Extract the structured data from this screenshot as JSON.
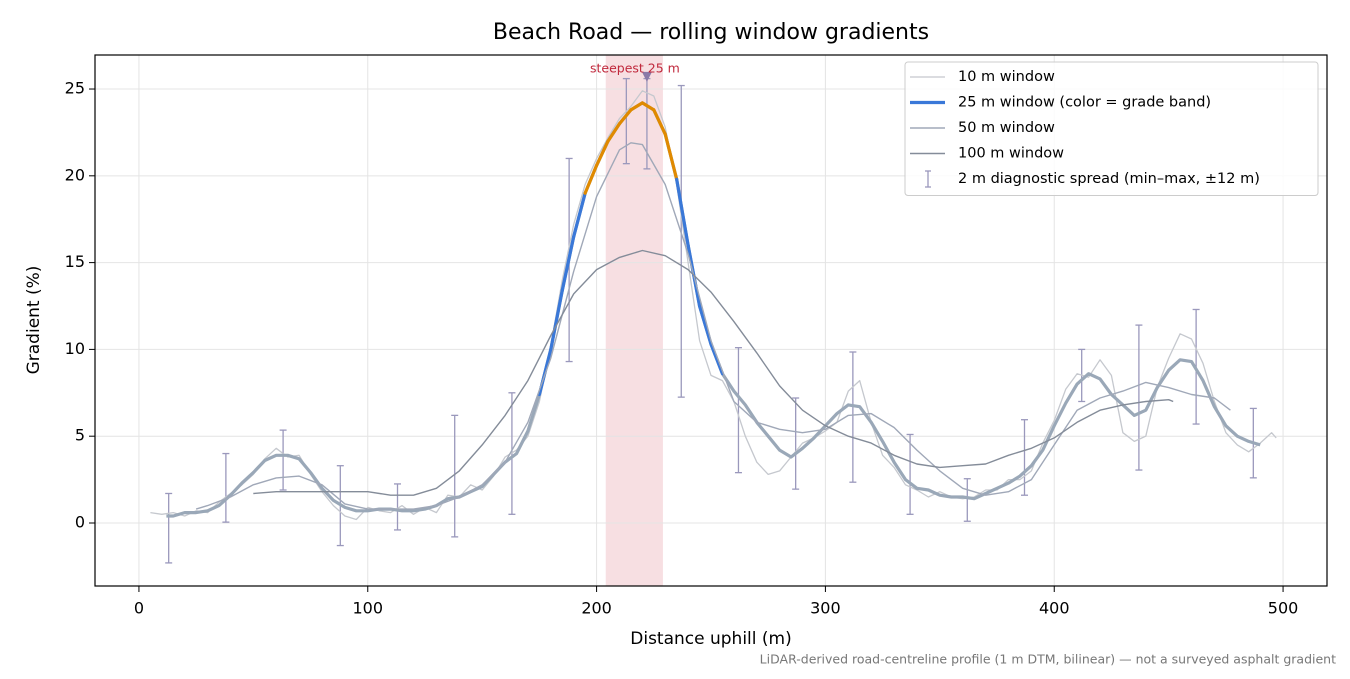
{
  "chart_data": {
    "type": "line",
    "title": "Beach Road — rolling window gradients",
    "x_label": "Distance uphill (m)",
    "y_label": "Gradient (%)",
    "footnote": "LiDAR-derived road-centreline profile (1 m DTM, bilinear) — not a surveyed asphalt gradient",
    "xlim": [
      -19.2,
      519.2
    ],
    "ylim": [
      -3.63,
      26.96
    ],
    "xticks": [
      0,
      100,
      200,
      300,
      400,
      500
    ],
    "yticks": [
      0,
      5,
      10,
      15,
      20,
      25
    ],
    "grid": true,
    "legend": "upper right",
    "highlight": {
      "x": [
        204,
        229
      ],
      "color": "#e8a4ad"
    },
    "annotation": {
      "text": "steepest 25 m",
      "x": 222,
      "y": 25.7,
      "color": "#c0283c"
    },
    "series": [
      {
        "name": "10 m window",
        "color": "#c5c8ce",
        "width": 1.3,
        "x": [
          5,
          10,
          15,
          20,
          25,
          30,
          35,
          40,
          45,
          50,
          55,
          60,
          65,
          70,
          75,
          80,
          85,
          90,
          95,
          100,
          105,
          110,
          115,
          120,
          125,
          130,
          135,
          140,
          145,
          150,
          155,
          160,
          165,
          170,
          175,
          180,
          185,
          190,
          195,
          200,
          205,
          210,
          215,
          220,
          225,
          230,
          235,
          240,
          245,
          250,
          255,
          260,
          265,
          270,
          275,
          280,
          285,
          290,
          295,
          300,
          305,
          310,
          315,
          320,
          325,
          330,
          335,
          340,
          345,
          350,
          355,
          360,
          365,
          370,
          375,
          380,
          385,
          390,
          395,
          400,
          405,
          410,
          415,
          420,
          425,
          430,
          435,
          440,
          445,
          450,
          455,
          460,
          465,
          470,
          475,
          480,
          485,
          490,
          495,
          497
        ],
        "values": [
          0.6,
          0.5,
          0.6,
          0.4,
          0.7,
          0.6,
          1.2,
          1.7,
          2.2,
          2.8,
          3.7,
          4.3,
          3.8,
          3.9,
          2.8,
          1.8,
          1.0,
          0.4,
          0.2,
          0.9,
          0.7,
          0.6,
          1.0,
          0.5,
          0.9,
          0.6,
          1.6,
          1.5,
          2.2,
          1.9,
          2.7,
          3.8,
          4.2,
          5.0,
          7.0,
          10.2,
          14.0,
          17.2,
          19.5,
          21.0,
          22.2,
          23.3,
          24.0,
          24.9,
          24.6,
          22.8,
          19.5,
          15.0,
          10.5,
          8.5,
          8.2,
          7.0,
          5.0,
          3.5,
          2.8,
          3.0,
          3.8,
          4.6,
          4.9,
          5.3,
          5.8,
          7.6,
          8.2,
          5.8,
          3.9,
          3.2,
          2.2,
          1.9,
          1.5,
          1.8,
          1.5,
          1.4,
          1.5,
          1.9,
          1.9,
          2.5,
          2.5,
          3.0,
          4.6,
          5.9,
          7.7,
          8.6,
          8.4,
          9.4,
          8.5,
          5.2,
          4.7,
          5.0,
          7.8,
          9.5,
          10.9,
          10.6,
          9.2,
          7.0,
          5.2,
          4.5,
          4.1,
          4.6,
          5.2,
          4.9
        ]
      },
      {
        "name": "25 m window (color = grade band)",
        "color": "#9aa8b8",
        "legend_color": "#3a78d8",
        "width": 3.2,
        "grade_bands": [
          {
            "min": 10,
            "color": "#3a78d8"
          },
          {
            "min": 20,
            "color": "#e08a00"
          }
        ],
        "x": [
          12,
          15,
          20,
          25,
          30,
          35,
          40,
          45,
          50,
          55,
          60,
          65,
          70,
          75,
          80,
          85,
          90,
          95,
          100,
          105,
          110,
          115,
          120,
          125,
          130,
          135,
          140,
          145,
          150,
          155,
          160,
          165,
          170,
          175,
          180,
          185,
          190,
          195,
          200,
          205,
          210,
          215,
          220,
          225,
          230,
          235,
          240,
          245,
          250,
          255,
          260,
          265,
          270,
          275,
          280,
          285,
          290,
          295,
          300,
          305,
          310,
          315,
          320,
          325,
          330,
          335,
          340,
          345,
          350,
          355,
          360,
          365,
          370,
          375,
          380,
          385,
          390,
          395,
          400,
          405,
          410,
          415,
          420,
          425,
          430,
          435,
          440,
          445,
          450,
          455,
          460,
          465,
          470,
          475,
          480,
          485,
          490
        ],
        "values": [
          0.4,
          0.4,
          0.6,
          0.6,
          0.7,
          1.0,
          1.6,
          2.3,
          2.9,
          3.6,
          3.9,
          3.9,
          3.7,
          2.9,
          2.0,
          1.3,
          0.9,
          0.7,
          0.7,
          0.8,
          0.8,
          0.7,
          0.7,
          0.8,
          1.0,
          1.4,
          1.5,
          1.8,
          2.1,
          2.8,
          3.5,
          4.0,
          5.3,
          7.4,
          10.0,
          13.4,
          16.5,
          19.0,
          20.6,
          22.0,
          23.0,
          23.8,
          24.2,
          23.8,
          22.4,
          19.8,
          16.0,
          12.5,
          10.3,
          8.6,
          7.6,
          6.8,
          5.8,
          5.0,
          4.2,
          3.8,
          4.3,
          4.9,
          5.6,
          6.3,
          6.8,
          6.7,
          5.8,
          4.7,
          3.5,
          2.5,
          2.0,
          1.9,
          1.6,
          1.5,
          1.5,
          1.4,
          1.7,
          2.0,
          2.3,
          2.7,
          3.3,
          4.2,
          5.6,
          6.9,
          8.0,
          8.6,
          8.3,
          7.4,
          6.8,
          6.2,
          6.5,
          7.8,
          8.8,
          9.4,
          9.3,
          8.2,
          6.7,
          5.6,
          5.0,
          4.7,
          4.5
        ]
      },
      {
        "name": "50 m window",
        "color": "#a0a8b8",
        "width": 1.4,
        "x": [
          25,
          30,
          40,
          50,
          60,
          70,
          80,
          90,
          100,
          110,
          120,
          130,
          140,
          150,
          160,
          170,
          180,
          190,
          200,
          210,
          215,
          220,
          230,
          240,
          250,
          260,
          270,
          280,
          290,
          300,
          310,
          320,
          330,
          340,
          350,
          360,
          370,
          380,
          390,
          400,
          410,
          420,
          430,
          440,
          450,
          460,
          470,
          477
        ],
        "values": [
          0.8,
          1.0,
          1.5,
          2.2,
          2.6,
          2.7,
          2.2,
          1.1,
          0.8,
          0.8,
          0.8,
          1.0,
          1.5,
          2.2,
          3.5,
          5.8,
          9.5,
          14.5,
          18.8,
          21.5,
          21.9,
          21.8,
          19.5,
          15.5,
          10.5,
          7.0,
          5.8,
          5.4,
          5.2,
          5.4,
          6.2,
          6.3,
          5.5,
          4.2,
          3.0,
          2.0,
          1.6,
          1.8,
          2.5,
          4.5,
          6.5,
          7.2,
          7.6,
          8.1,
          7.8,
          7.4,
          7.2,
          6.5
        ]
      },
      {
        "name": "100 m window",
        "color": "#848c99",
        "width": 1.4,
        "x": [
          50,
          60,
          70,
          80,
          90,
          100,
          110,
          120,
          130,
          140,
          150,
          160,
          170,
          180,
          190,
          200,
          210,
          220,
          230,
          240,
          250,
          260,
          270,
          280,
          290,
          300,
          310,
          320,
          330,
          340,
          350,
          360,
          370,
          380,
          390,
          400,
          410,
          420,
          430,
          440,
          450,
          452
        ],
        "values": [
          1.7,
          1.8,
          1.8,
          1.8,
          1.8,
          1.8,
          1.6,
          1.6,
          2.0,
          3.0,
          4.5,
          6.2,
          8.2,
          10.8,
          13.2,
          14.6,
          15.3,
          15.7,
          15.4,
          14.6,
          13.3,
          11.6,
          9.8,
          7.9,
          6.5,
          5.6,
          5.0,
          4.6,
          3.9,
          3.4,
          3.2,
          3.3,
          3.4,
          3.9,
          4.3,
          4.9,
          5.8,
          6.5,
          6.8,
          7.0,
          7.1,
          7.0
        ]
      }
    ],
    "spread": {
      "name": "2 m diagnostic spread (min–max, ±12 m)",
      "color": "#9a98bc",
      "x": [
        13,
        38,
        63,
        88,
        113,
        138,
        163,
        188,
        213,
        222,
        237,
        262,
        287,
        312,
        337,
        362,
        387,
        412,
        437,
        462,
        487
      ],
      "low": [
        -2.3,
        0.05,
        1.9,
        -1.3,
        -0.4,
        -0.8,
        0.5,
        9.3,
        20.7,
        20.4,
        7.25,
        2.9,
        1.95,
        2.35,
        0.5,
        0.1,
        1.6,
        7.0,
        3.05,
        5.7,
        2.6
      ],
      "high": [
        1.7,
        4.0,
        5.35,
        3.3,
        2.25,
        6.2,
        7.5,
        21.0,
        25.6,
        25.6,
        25.2,
        10.1,
        7.2,
        9.85,
        5.1,
        2.55,
        5.95,
        10.0,
        11.4,
        12.3,
        6.6
      ]
    }
  }
}
